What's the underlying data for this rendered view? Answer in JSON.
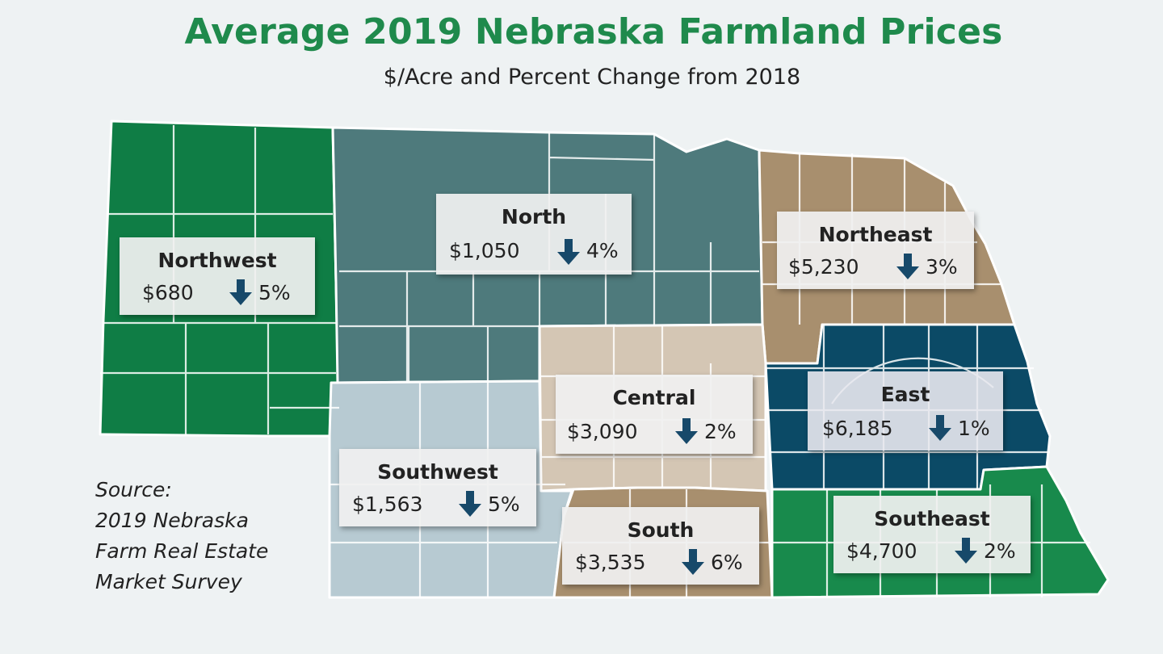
{
  "title": "Average 2019 Nebraska Farmland Prices",
  "subtitle": "$/Acre and Percent Change from 2018",
  "colors": {
    "northwest": "#0f7d45",
    "north": "#4e7a7c",
    "northeast": "#a88f6e",
    "central": "#d4c6b4",
    "southwest": "#b7cad2",
    "south": "#a88f6e",
    "east": "#0b4a66",
    "southeast": "#188a4c",
    "arrow": "#17496a",
    "title": "#1f8a4c"
  },
  "regions": [
    {
      "id": "northwest",
      "name": "Northwest",
      "price": "$680",
      "change": "5%",
      "direction": "down"
    },
    {
      "id": "north",
      "name": "North",
      "price": "$1,050",
      "change": "4%",
      "direction": "down"
    },
    {
      "id": "northeast",
      "name": "Northeast",
      "price": "$5,230",
      "change": "3%",
      "direction": "down"
    },
    {
      "id": "central",
      "name": "Central",
      "price": "$3,090",
      "change": "2%",
      "direction": "down"
    },
    {
      "id": "east",
      "name": "East",
      "price": "$6,185",
      "change": "1%",
      "direction": "down"
    },
    {
      "id": "southwest",
      "name": "Southwest",
      "price": "$1,563",
      "change": "5%",
      "direction": "down"
    },
    {
      "id": "south",
      "name": "South",
      "price": "$3,535",
      "change": "6%",
      "direction": "down"
    },
    {
      "id": "southeast",
      "name": "Southeast",
      "price": "$4,700",
      "change": "2%",
      "direction": "down"
    }
  ],
  "source": {
    "lines": [
      "Source:",
      "2019 Nebraska",
      "Farm Real Estate",
      "Market Survey"
    ]
  }
}
